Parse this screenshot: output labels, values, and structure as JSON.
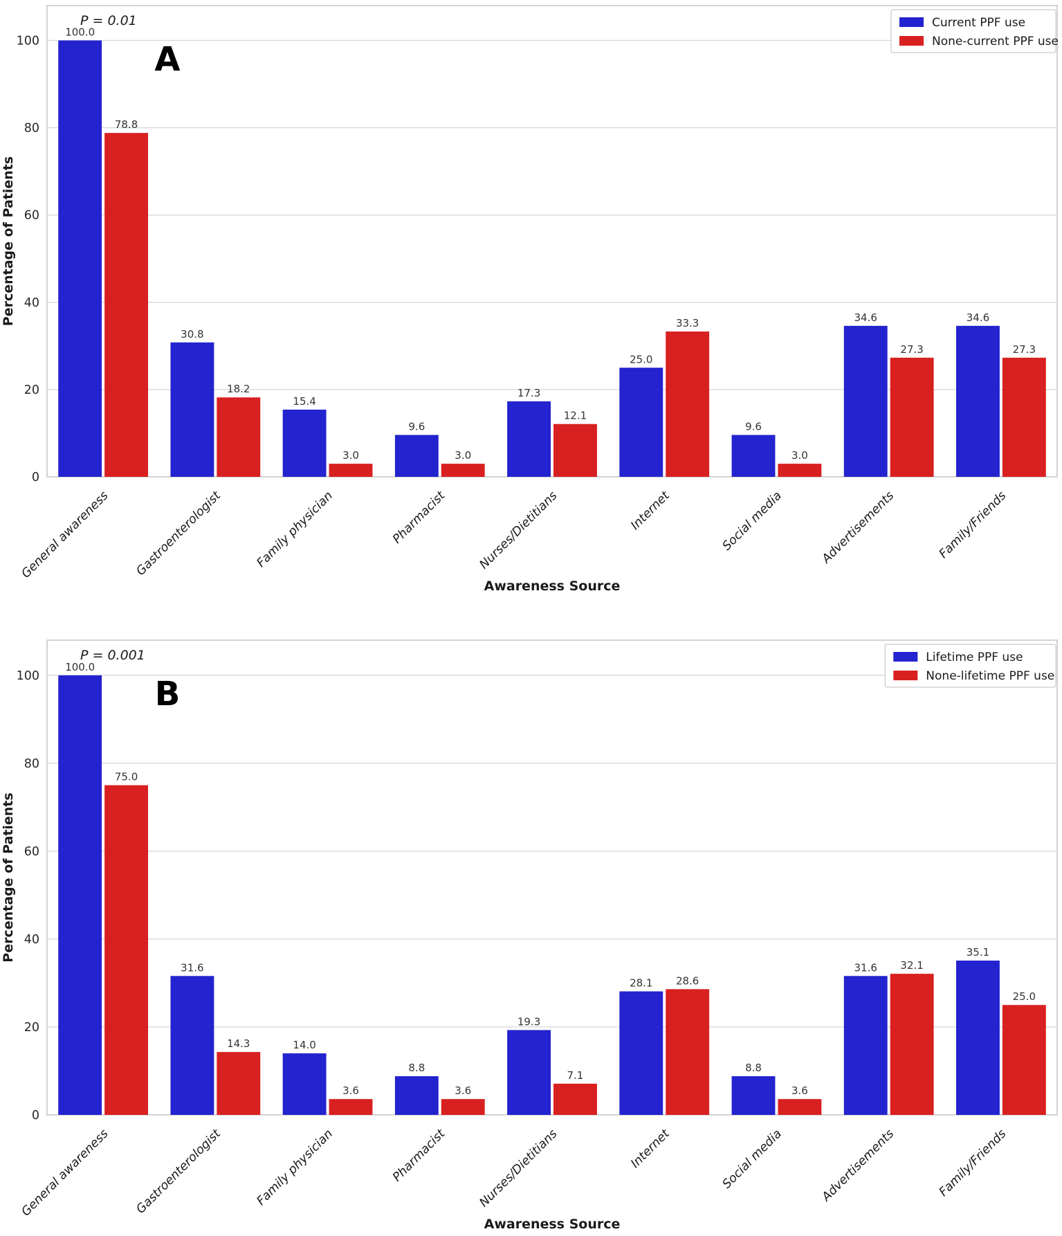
{
  "figure": {
    "ylabel": "Percentage of Patients",
    "xlabel": "Awareness Source",
    "yticks": [
      0,
      20,
      40,
      60,
      80,
      100
    ],
    "colors": {
      "series_blue": "#2323cf",
      "series_red": "#d92020",
      "grid": "#d9d9d9",
      "spine": "#c8c8c8",
      "tick_text": "#262626",
      "value_text": "#333333",
      "label_text": "#1a1a1a",
      "legend_border": "#cccccc",
      "background": "#ffffff"
    }
  },
  "chart_data": [
    {
      "type": "bar",
      "panel_label": "A",
      "annotation": "P = 0.01",
      "title": "",
      "xlabel": "Awareness Source",
      "ylabel": "Percentage of Patients",
      "ylim": [
        0,
        108
      ],
      "yticks": [
        0,
        20,
        40,
        60,
        80,
        100
      ],
      "grid": true,
      "legend_position": "upper right",
      "categories": [
        "General awareness",
        "Gastroenterologist",
        "Family physician",
        "Pharmacist",
        "Nurses/Dietitians",
        "Internet",
        "Social media",
        "Advertisements",
        "Family/Friends"
      ],
      "series": [
        {
          "name": "Current PPF use",
          "color": "#2323cf",
          "values": [
            100.0,
            30.8,
            15.4,
            9.6,
            17.3,
            25.0,
            9.6,
            34.6,
            34.6
          ]
        },
        {
          "name": "None-current PPF use",
          "color": "#d92020",
          "values": [
            78.8,
            18.2,
            3.0,
            3.0,
            12.1,
            33.3,
            3.0,
            27.3,
            27.3
          ]
        }
      ]
    },
    {
      "type": "bar",
      "panel_label": "B",
      "annotation": "P = 0.001",
      "title": "",
      "xlabel": "Awareness Source",
      "ylabel": "Percentage of Patients",
      "ylim": [
        0,
        108
      ],
      "yticks": [
        0,
        20,
        40,
        60,
        80,
        100
      ],
      "grid": true,
      "legend_position": "upper right",
      "categories": [
        "General awareness",
        "Gastroenterologist",
        "Family physician",
        "Pharmacist",
        "Nurses/Dietitians",
        "Internet",
        "Social media",
        "Advertisements",
        "Family/Friends"
      ],
      "series": [
        {
          "name": "Lifetime PPF use",
          "color": "#2323cf",
          "values": [
            100.0,
            31.6,
            14.0,
            8.8,
            19.3,
            28.1,
            8.8,
            31.6,
            35.1
          ]
        },
        {
          "name": "None-lifetime PPF use",
          "color": "#d92020",
          "values": [
            75.0,
            14.3,
            3.6,
            3.6,
            7.1,
            28.6,
            3.6,
            32.1,
            25.0
          ]
        }
      ]
    }
  ]
}
